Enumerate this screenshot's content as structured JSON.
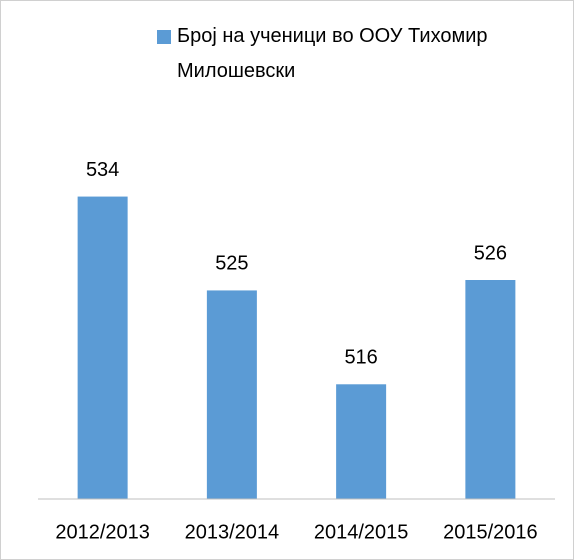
{
  "chart_data": {
    "type": "bar",
    "series": [
      {
        "name": "Број на ученици во ООУ Тихомир Милошевски",
        "color": "#5b9bd5",
        "values": [
          534,
          525,
          516,
          526
        ]
      }
    ],
    "categories": [
      "2012/2013",
      "2013/2014",
      "2014/2015",
      "2015/2016"
    ],
    "ylim": [
      505,
      540
    ],
    "data_labels": true,
    "legend": "top"
  }
}
